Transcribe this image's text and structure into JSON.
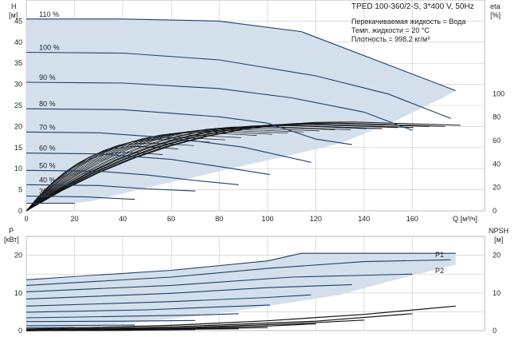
{
  "chart_data": [
    {
      "type": "line",
      "panel": "head-efficiency",
      "title": "TPED 100-360/2-S, 3*400 V, 50Hz",
      "info": [
        "Перекачиваемая жидкость = Вода",
        "Темп. жидкости = 20 °C",
        "Плотность = 998.2 кг/м³"
      ],
      "ylabel": [
        "H",
        "[м]"
      ],
      "y2label": [
        "eta",
        "[%]"
      ],
      "xlabel": "Q [м³/ч]",
      "xlim": [
        0,
        190
      ],
      "ylim": [
        0,
        50
      ],
      "y2lim": [
        0,
        180
      ],
      "xticks": [
        0,
        20,
        40,
        60,
        80,
        100,
        120,
        140,
        160
      ],
      "yticks": [
        0,
        5,
        10,
        15,
        20,
        25,
        30,
        35,
        40,
        45
      ],
      "y2ticks": [
        0,
        20,
        40,
        60,
        80,
        100
      ],
      "grid": true,
      "operating_area": [
        [
          0,
          45.5
        ],
        [
          40,
          45.5
        ],
        [
          80,
          45.0
        ],
        [
          114,
          42.5
        ],
        [
          178,
          28.5
        ],
        [
          174,
          27.2
        ],
        [
          150,
          20.5
        ],
        [
          130,
          16.0
        ],
        [
          108,
          13.0
        ],
        [
          90,
          10.7
        ],
        [
          72,
          8.3
        ],
        [
          56,
          6.3
        ],
        [
          45,
          4.8
        ],
        [
          35,
          3.4
        ],
        [
          27,
          2.3
        ],
        [
          20,
          1.8
        ],
        [
          0,
          1.8
        ]
      ],
      "head_curves": [
        {
          "label": "110 %",
          "points": [
            [
              0,
              45.5
            ],
            [
              40,
              45.5
            ],
            [
              80,
              45.0
            ],
            [
              114,
              42.5
            ],
            [
              178,
              28.5
            ]
          ]
        },
        {
          "label": "100 %",
          "points": [
            [
              0,
              37.6
            ],
            [
              40,
              37.4
            ],
            [
              80,
              35.8
            ],
            [
              120,
              32.0
            ],
            [
              150,
              27.7
            ],
            [
              176,
              21.9
            ]
          ]
        },
        {
          "label": "90 %",
          "points": [
            [
              0,
              30.5
            ],
            [
              40,
              30.3
            ],
            [
              80,
              29.0
            ],
            [
              110,
              26.8
            ],
            [
              140,
              23.4
            ],
            [
              160,
              19.1
            ]
          ]
        },
        {
          "label": "80 %",
          "points": [
            [
              0,
              24.2
            ],
            [
              40,
              24.0
            ],
            [
              80,
              22.3
            ],
            [
              100,
              20.8
            ],
            [
              120,
              17.0
            ],
            [
              135,
              15.7
            ]
          ]
        },
        {
          "label": "70 %",
          "points": [
            [
              0,
              18.7
            ],
            [
              30,
              18.5
            ],
            [
              60,
              17.3
            ],
            [
              90,
              15.1
            ],
            [
              118,
              11.5
            ]
          ]
        },
        {
          "label": "60 %",
          "points": [
            [
              0,
              13.7
            ],
            [
              30,
              13.5
            ],
            [
              60,
              12.2
            ],
            [
              80,
              10.5
            ],
            [
              101,
              8.6
            ]
          ]
        },
        {
          "label": "50 %",
          "points": [
            [
              0,
              9.6
            ],
            [
              30,
              9.4
            ],
            [
              50,
              8.5
            ],
            [
              70,
              7.2
            ],
            [
              88,
              6.2
            ]
          ]
        },
        {
          "label": "40 %",
          "points": [
            [
              0,
              6.2
            ],
            [
              30,
              6.0
            ],
            [
              50,
              5.2
            ],
            [
              70,
              4.7
            ]
          ]
        },
        {
          "label": "30 %",
          "points": [
            [
              0,
              3.5
            ],
            [
              25,
              3.3
            ],
            [
              45,
              2.7
            ]
          ]
        },
        {
          "label": "",
          "points": [
            [
              0,
              1.8
            ],
            [
              20,
              1.8
            ]
          ]
        }
      ],
      "efficiency_curves_peak": [
        76,
        75,
        75,
        74,
        74,
        73,
        73,
        72,
        72,
        71,
        70,
        69,
        68,
        67,
        65,
        63,
        61,
        58,
        55,
        50
      ]
    },
    {
      "type": "line",
      "panel": "power-npsh",
      "ylabel": [
        "P",
        "[кВт]"
      ],
      "y2label": [
        "NPSH",
        "[м]"
      ],
      "xlim": [
        0,
        190
      ],
      "ylim": [
        0,
        25
      ],
      "y2lim": [
        0,
        25
      ],
      "yticks": [
        0,
        10,
        20
      ],
      "y2ticks": [
        0,
        10,
        20
      ],
      "grid": true,
      "series_labels": [
        "P1",
        "P2"
      ],
      "power_area": [
        [
          0,
          13.5
        ],
        [
          20,
          14.0
        ],
        [
          60,
          16.0
        ],
        [
          100,
          18.5
        ],
        [
          114,
          20.5
        ],
        [
          178,
          20.5
        ],
        [
          178,
          17.5
        ],
        [
          150,
          13.0
        ],
        [
          130,
          9.5
        ],
        [
          100,
          6.5
        ],
        [
          80,
          4.6
        ],
        [
          50,
          2.4
        ],
        [
          20,
          1.0
        ],
        [
          0,
          0.6
        ]
      ],
      "power_curves": [
        {
          "label": "P1",
          "points": [
            [
              0,
              13.5
            ],
            [
              60,
              16.0
            ],
            [
              100,
              18.5
            ],
            [
              114,
              20.5
            ],
            [
              178,
              20.5
            ]
          ]
        },
        {
          "label": "P2",
          "points": [
            [
              0,
              12.0
            ],
            [
              60,
              14.2
            ],
            [
              100,
              16.5
            ],
            [
              140,
              18.3
            ],
            [
              176,
              18.8
            ]
          ]
        },
        {
          "label": "",
          "points": [
            [
              0,
              10.3
            ],
            [
              60,
              12.0
            ],
            [
              110,
              14.2
            ],
            [
              160,
              15.0
            ]
          ]
        },
        {
          "label": "",
          "points": [
            [
              0,
              8.4
            ],
            [
              60,
              9.9
            ],
            [
              100,
              11.4
            ],
            [
              135,
              12.2
            ]
          ]
        },
        {
          "label": "",
          "points": [
            [
              0,
              6.5
            ],
            [
              60,
              7.7
            ],
            [
              100,
              8.8
            ],
            [
              118,
              9.5
            ]
          ]
        },
        {
          "label": "",
          "points": [
            [
              0,
              4.9
            ],
            [
              50,
              5.5
            ],
            [
              80,
              6.3
            ],
            [
              101,
              6.8
            ]
          ]
        },
        {
          "label": "",
          "points": [
            [
              0,
              3.4
            ],
            [
              40,
              3.8
            ],
            [
              70,
              4.1
            ],
            [
              88,
              4.5
            ]
          ]
        },
        {
          "label": "",
          "points": [
            [
              0,
              2.4
            ],
            [
              40,
              2.5
            ],
            [
              70,
              2.7
            ]
          ]
        },
        {
          "label": "",
          "points": [
            [
              0,
              1.3
            ],
            [
              30,
              1.4
            ],
            [
              45,
              1.5
            ]
          ]
        },
        {
          "label": "",
          "points": [
            [
              0,
              0.7
            ],
            [
              20,
              0.8
            ]
          ]
        }
      ],
      "npsh_curves": [
        {
          "points": [
            [
              0,
              0.4
            ],
            [
              60,
              1.4
            ],
            [
              100,
              2.6
            ],
            [
              140,
              4.3
            ],
            [
              178,
              6.5
            ]
          ]
        },
        {
          "points": [
            [
              0,
              0.2
            ],
            [
              60,
              1.0
            ],
            [
              120,
              2.5
            ],
            [
              160,
              4.5
            ]
          ]
        },
        {
          "points": [
            [
              0,
              0.1
            ],
            [
              60,
              0.7
            ],
            [
              110,
              1.8
            ],
            [
              140,
              2.8
            ]
          ]
        },
        {
          "points": [
            [
              0,
              0.1
            ],
            [
              60,
              0.5
            ],
            [
              100,
              1.2
            ],
            [
              120,
              1.8
            ]
          ]
        },
        {
          "points": [
            [
              0,
              0.0
            ],
            [
              50,
              0.3
            ],
            [
              100,
              0.8
            ]
          ]
        },
        {
          "points": [
            [
              0,
              0.0
            ],
            [
              40,
              0.2
            ],
            [
              88,
              0.5
            ]
          ]
        },
        {
          "points": [
            [
              0,
              0.0
            ],
            [
              40,
              0.1
            ],
            [
              70,
              0.3
            ]
          ]
        },
        {
          "points": [
            [
              0,
              0.0
            ],
            [
              45,
              0.1
            ]
          ]
        }
      ]
    }
  ],
  "colors": {
    "area_fill": "#d3e0ec",
    "curve": "#1b3f66",
    "grid": "#c8c8c8",
    "eff_curve": "#111111",
    "axis": "#333333"
  }
}
